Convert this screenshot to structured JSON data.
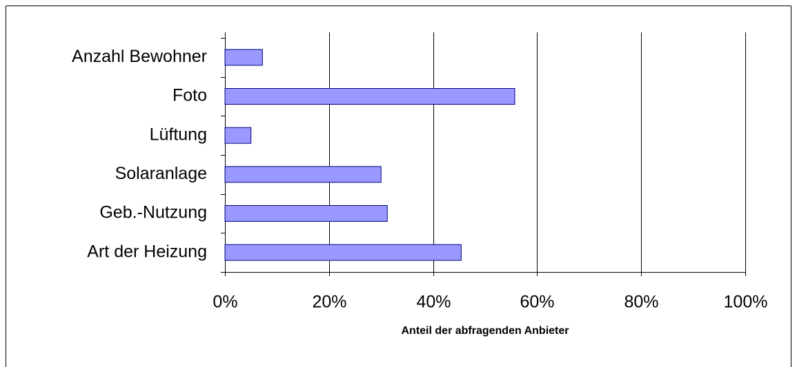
{
  "chart_data": {
    "type": "bar",
    "orientation": "horizontal",
    "x_label": "Anteil der abfragenden Anbieter",
    "categories": [
      "Anzahl Bewohner",
      "Foto",
      "Lüftung",
      "Solaranlage",
      "Geb.-Nutzung",
      "Art der Heizung"
    ],
    "values": [
      7.2,
      55.7,
      5.0,
      30.0,
      31.2,
      45.4
    ],
    "color": "#9999ff",
    "xlim": [
      0,
      100
    ],
    "xticks": [
      {
        "value": 0,
        "label": "0%"
      },
      {
        "value": 20,
        "label": "20%"
      },
      {
        "value": 40,
        "label": "40%"
      },
      {
        "value": 60,
        "label": "60%"
      },
      {
        "value": 80,
        "label": "80%"
      },
      {
        "value": 100,
        "label": "100%"
      }
    ],
    "grid": true
  }
}
